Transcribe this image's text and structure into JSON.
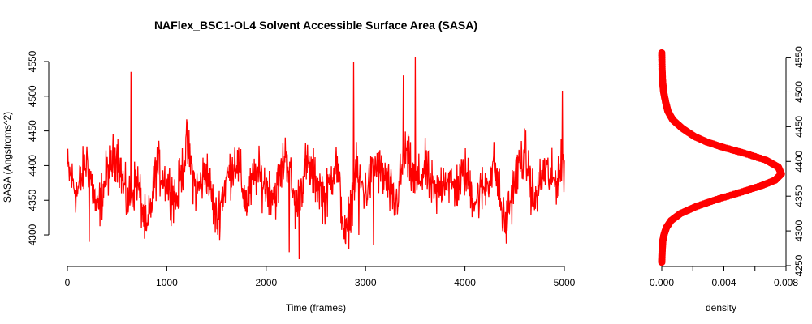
{
  "chart_data": [
    {
      "type": "line",
      "title": "NAFlex_BSC1-OL4 Solvent Accessible Surface Area (SASA)",
      "xlabel": "Time (frames)",
      "ylabel": "SASA (Angstroms^2)",
      "xlim": [
        0,
        5000
      ],
      "ylim": [
        4265,
        4557
      ],
      "x_ticks": [
        "0",
        "1000",
        "2000",
        "3000",
        "4000",
        "5000"
      ],
      "y_ticks": [
        "4300",
        "4350",
        "4400",
        "4450",
        "4500",
        "4550"
      ],
      "grid": false,
      "color": "#ff0000",
      "series": [
        {
          "x_step": 100,
          "values": [
            4395,
            4360,
            4410,
            4330,
            4390,
            4420,
            4345,
            4380,
            4300,
            4400,
            4375,
            4350,
            4430,
            4360,
            4395,
            4320,
            4380,
            4410,
            4345,
            4390,
            4370,
            4360,
            4420,
            4335,
            4400,
            4380,
            4350,
            4410,
            4290,
            4390,
            4360,
            4400,
            4380,
            4340,
            4420,
            4370,
            4395,
            4355,
            4385,
            4365,
            4390,
            4350,
            4370,
            4400,
            4310,
            4380,
            4420,
            4345,
            4395,
            4375,
            4405
          ],
          "extremes": [
            {
              "x": 220,
              "y": 4290
            },
            {
              "x": 640,
              "y": 4535
            },
            {
              "x": 2230,
              "y": 4275
            },
            {
              "x": 2330,
              "y": 4265
            },
            {
              "x": 2880,
              "y": 4550
            },
            {
              "x": 2930,
              "y": 4300
            },
            {
              "x": 3080,
              "y": 4285
            },
            {
              "x": 3500,
              "y": 4557
            },
            {
              "x": 3380,
              "y": 4530
            },
            {
              "x": 4980,
              "y": 4508
            }
          ]
        }
      ]
    },
    {
      "type": "line",
      "title": "",
      "xlabel": "density",
      "ylabel": "",
      "xlim": [
        0,
        0.008
      ],
      "ylim": [
        4250,
        4560
      ],
      "x_ticks": [
        "0.000",
        "0.004",
        "0.008"
      ],
      "y_ticks": [
        "4250",
        "4300",
        "4350",
        "4400",
        "4450",
        "4500",
        "4550"
      ],
      "grid": false,
      "color": "#ff0000",
      "series": [
        {
          "x": [
            0.0,
            2e-05,
            6e-05,
            0.00015,
            0.0003,
            0.0006,
            0.0012,
            0.0022,
            0.0035,
            0.005,
            0.0064,
            0.0073,
            0.0077,
            0.0075,
            0.0067,
            0.0053,
            0.004,
            0.0029,
            0.0021,
            0.0013,
            0.0007,
            0.0004,
            0.00025,
            0.00012,
            5e-05,
            2e-05,
            0.0
          ],
          "y": [
            4255,
            4270,
            4285,
            4295,
            4305,
            4315,
            4325,
            4335,
            4345,
            4355,
            4365,
            4373,
            4382,
            4392,
            4402,
            4412,
            4420,
            4428,
            4436,
            4448,
            4460,
            4472,
            4485,
            4500,
            4515,
            4530,
            4556
          ]
        }
      ]
    }
  ]
}
